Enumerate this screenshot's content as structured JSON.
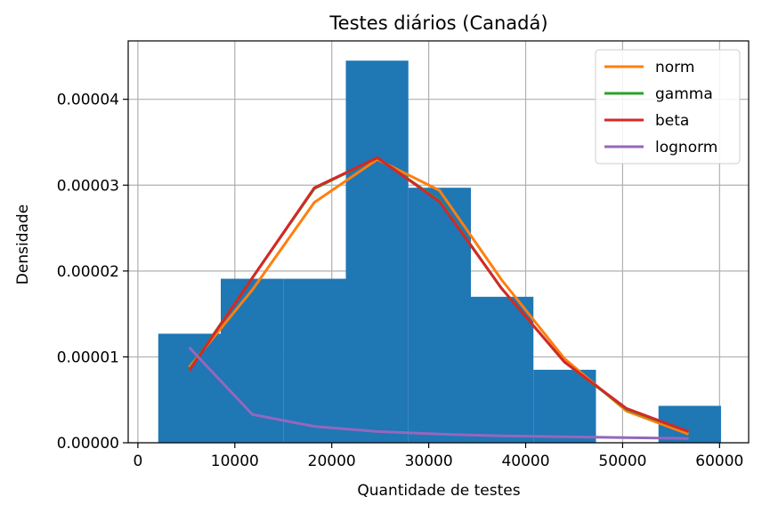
{
  "chart_data": {
    "type": "histogram",
    "title": "Testes diários (Canadá)",
    "xlabel": "Quantidade de testes",
    "ylabel": "Densidade",
    "xlim": [
      -1000,
      63000
    ],
    "ylim": [
      0,
      4.68e-05
    ],
    "xticks": [
      0,
      10000,
      20000,
      30000,
      40000,
      50000,
      60000
    ],
    "xtick_labels": [
      "0",
      "10000",
      "20000",
      "30000",
      "40000",
      "50000",
      "60000"
    ],
    "yticks": [
      0,
      1e-05,
      2e-05,
      3e-05,
      4e-05
    ],
    "ytick_labels": [
      "0.00000",
      "0.00001",
      "0.00002",
      "0.00003",
      "0.00004"
    ],
    "grid": true,
    "legend_position": "top-right",
    "bar_color": "#1f77b4",
    "bins": [
      2100,
      8550,
      15000,
      21450,
      27900,
      34350,
      40800,
      47250,
      53700,
      60150
    ],
    "values": [
      1.27e-05,
      1.91e-05,
      1.91e-05,
      4.45e-05,
      2.97e-05,
      1.7e-05,
      8.5e-06,
      0.0,
      4.3e-06
    ],
    "series": [
      {
        "name": "norm",
        "color": "#ff7f0e",
        "x": [
          5300,
          11800,
          18200,
          24700,
          31100,
          37500,
          44000,
          50400,
          56800
        ],
        "y": [
          8.8e-06,
          1.78e-05,
          2.8e-05,
          3.3e-05,
          2.94e-05,
          1.9e-05,
          9.8e-06,
          3.7e-06,
          1e-06
        ]
      },
      {
        "name": "gamma",
        "color": "#2ca02c",
        "x": [
          5300,
          11800,
          18200,
          24700,
          31100,
          37500,
          44000,
          50400,
          56800
        ],
        "y": [
          8.5e-06,
          1.92e-05,
          2.96e-05,
          3.32e-05,
          2.82e-05,
          1.8e-05,
          9.4e-06,
          3.9e-06,
          1.3e-06
        ]
      },
      {
        "name": "beta",
        "color": "#d62728",
        "x": [
          5300,
          11800,
          18200,
          24700,
          31100,
          37500,
          44000,
          50400,
          56800
        ],
        "y": [
          8.4e-06,
          1.92e-05,
          2.97e-05,
          3.32e-05,
          2.81e-05,
          1.8e-05,
          9.4e-06,
          4e-06,
          1.3e-06
        ]
      },
      {
        "name": "lognorm",
        "color": "#9467bd",
        "x": [
          5300,
          11800,
          18200,
          24700,
          31100,
          37500,
          44000,
          50400,
          56800
        ],
        "y": [
          1.11e-05,
          3.3e-06,
          1.9e-06,
          1.3e-06,
          1e-06,
          8e-07,
          7e-07,
          6e-07,
          5e-07
        ]
      }
    ]
  }
}
